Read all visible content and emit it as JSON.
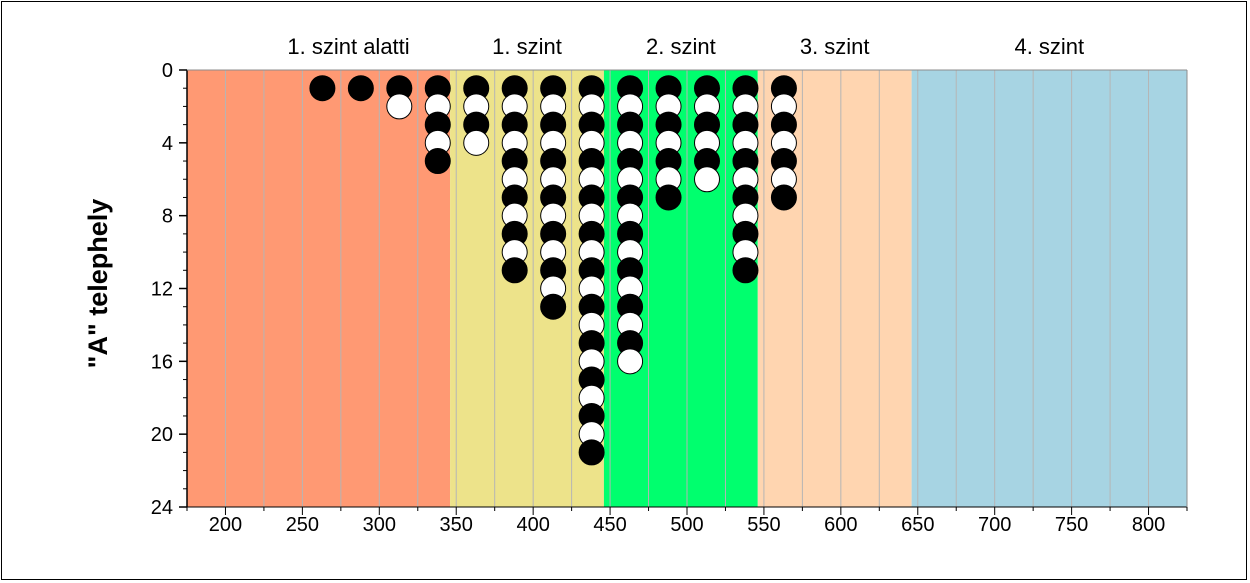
{
  "chart_data": {
    "type": "scatter",
    "title": "",
    "ylabel": "\"A\" telephely",
    "xlabel": "",
    "xlim": [
      175,
      825
    ],
    "ylim": [
      0,
      24
    ],
    "y_inverted": true,
    "x_ticks": [
      "200",
      "250",
      "300",
      "350",
      "400",
      "450",
      "500",
      "550",
      "600",
      "650",
      "700",
      "750",
      "800"
    ],
    "x_tick_values": [
      200,
      250,
      300,
      350,
      400,
      450,
      500,
      550,
      600,
      650,
      700,
      750,
      800
    ],
    "y_ticks": [
      "0",
      "4",
      "8",
      "12",
      "16",
      "20",
      "24"
    ],
    "y_tick_values": [
      0,
      4,
      8,
      12,
      16,
      20,
      24
    ],
    "x_minor_step": 25,
    "grid": "vertical",
    "bands": [
      {
        "label": "1. szint alatti",
        "x_from": 175,
        "x_to": 346,
        "color": "#FF9973"
      },
      {
        "label": "1. szint",
        "x_from": 346,
        "x_to": 446,
        "color": "#EDE38A"
      },
      {
        "label": "2. szint",
        "x_from": 446,
        "x_to": 546,
        "color": "#00FF6E"
      },
      {
        "label": "3. szint",
        "x_from": 546,
        "x_to": 646,
        "color": "#FFD5B0"
      },
      {
        "label": "4. szint",
        "x_from": 646,
        "x_to": 825,
        "color": "#A7D4E3"
      }
    ],
    "columns": [
      {
        "x": 263,
        "count": 1,
        "first_filled": true
      },
      {
        "x": 288,
        "count": 1,
        "first_filled": true
      },
      {
        "x": 313,
        "count": 2,
        "first_filled": true
      },
      {
        "x": 338,
        "count": 5,
        "first_filled": true
      },
      {
        "x": 363,
        "count": 4,
        "first_filled": true
      },
      {
        "x": 388,
        "count": 11,
        "first_filled": true
      },
      {
        "x": 413,
        "count": 13,
        "first_filled": true
      },
      {
        "x": 438,
        "count": 21,
        "first_filled": true
      },
      {
        "x": 463,
        "count": 16,
        "first_filled": true
      },
      {
        "x": 488,
        "count": 7,
        "first_filled": true
      },
      {
        "x": 513,
        "count": 6,
        "first_filled": true
      },
      {
        "x": 538,
        "count": 11,
        "first_filled": true
      },
      {
        "x": 563,
        "count": 7,
        "first_filled": true
      }
    ],
    "marker_colors": {
      "filled": "#000000",
      "open": "#FFFFFF"
    }
  }
}
